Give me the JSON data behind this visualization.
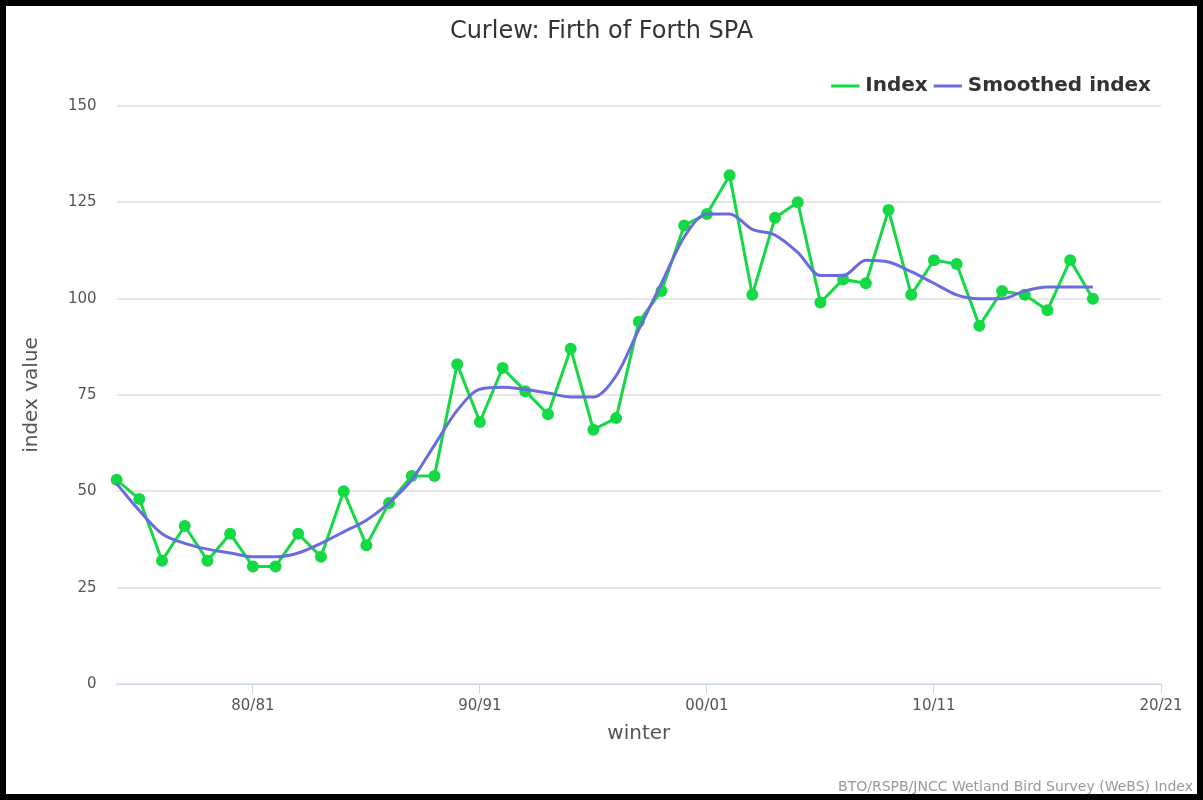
{
  "chart_data": {
    "type": "line",
    "title": "Curlew: Firth of Forth SPA",
    "xlabel": "winter",
    "ylabel": "index value",
    "categories": [
      null,
      null,
      null,
      null,
      null,
      null,
      "80/81",
      null,
      null,
      null,
      null,
      null,
      null,
      null,
      null,
      null,
      "90/91",
      null,
      null,
      null,
      null,
      null,
      null,
      null,
      null,
      null,
      "00/01",
      null,
      null,
      null,
      null,
      null,
      null,
      null,
      null,
      null,
      "10/11",
      null,
      null,
      null,
      null,
      null,
      null,
      null,
      null,
      null,
      "20/21"
    ],
    "series": [
      {
        "name": "Index",
        "color": "#14d944",
        "marker": "circle",
        "values": [
          53,
          48,
          32,
          41,
          32,
          39,
          30.5,
          30.5,
          39,
          33,
          50,
          36,
          47,
          54,
          54,
          83,
          68,
          82,
          76,
          70,
          87,
          66,
          69,
          94,
          102,
          119,
          122,
          132,
          101,
          121,
          125,
          99,
          105,
          104,
          123,
          101,
          110,
          109,
          93,
          102,
          101,
          97,
          110,
          100,
          null,
          null,
          null
        ]
      },
      {
        "name": "Smoothed index",
        "color": "#6b6be0",
        "marker": "none",
        "values": [
          52,
          45,
          39,
          36.5,
          35,
          34,
          33,
          33,
          34,
          36.5,
          39.5,
          42.5,
          47,
          53,
          62,
          71,
          76.5,
          77,
          76.5,
          75.5,
          74.5,
          74.5,
          80,
          92,
          104,
          116,
          122,
          122,
          118,
          116.5,
          112,
          106,
          106,
          110,
          109.5,
          107,
          104,
          101,
          100,
          100,
          102,
          103,
          103,
          103,
          null,
          null,
          null
        ]
      }
    ],
    "ylim": [
      0,
      150
    ],
    "yticks": [
      0,
      25,
      50,
      75,
      100,
      125,
      150
    ],
    "grid": "y",
    "legend": "top right",
    "line_style": "solid",
    "annotations": [
      "BTO/RSPB/JNCC Wetland Bird Survey (WeBS) Index"
    ]
  }
}
